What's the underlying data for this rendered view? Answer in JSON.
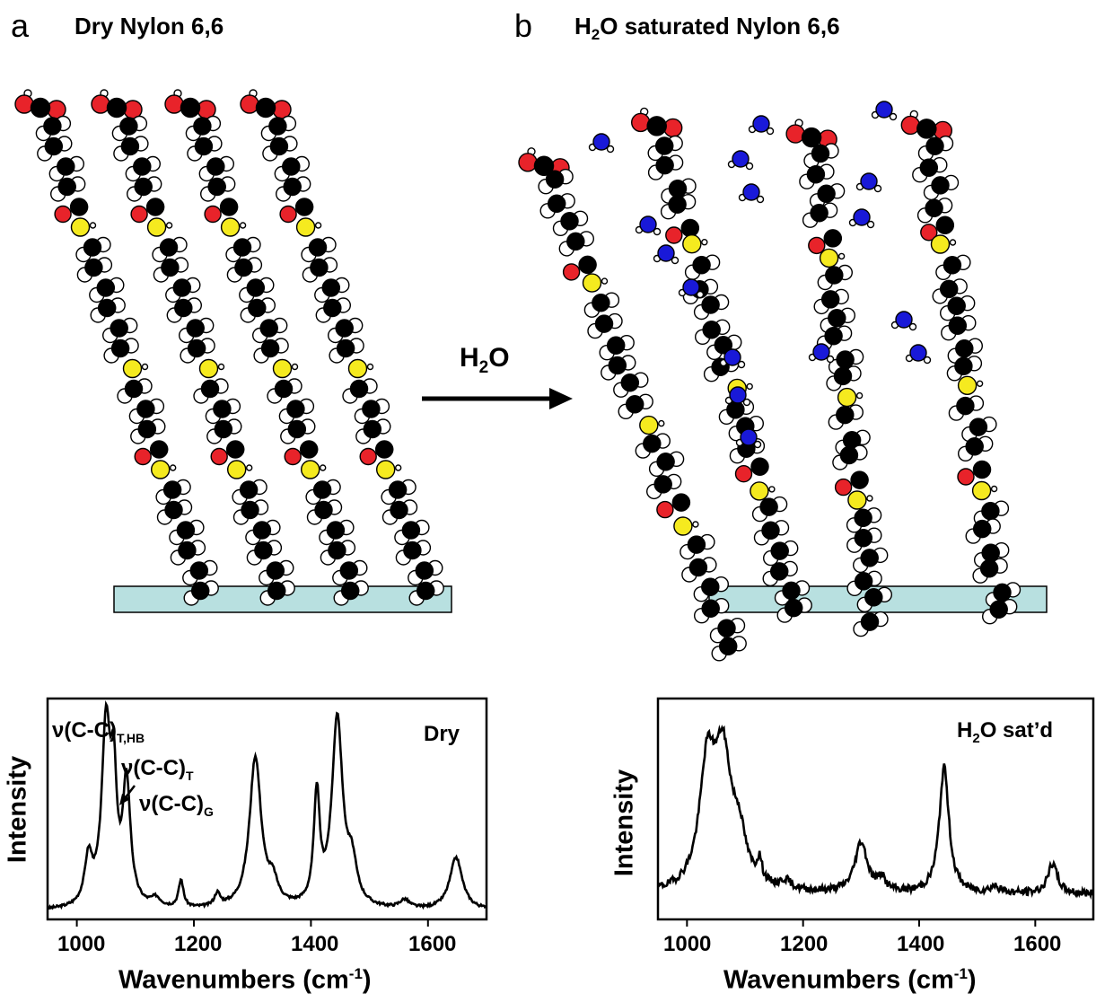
{
  "panel_a": {
    "letter": "a",
    "title": "Dry Nylon 6,6",
    "spectrum": {
      "corner_label": "Dry",
      "ylabel": "Intensity",
      "xlabel_main": "Wavenumbers (cm",
      "xlabel_sup": "-1",
      "xlabel_close": ")",
      "ticks": [
        "1000",
        "1200",
        "1400",
        "1600"
      ],
      "annotations": {
        "hb_main": "ν(C-C)",
        "hb_sub": "T,HB",
        "t_main": "ν(C-C)",
        "t_sub": "T",
        "g_main": "ν(C-C)",
        "g_sub": "G"
      }
    }
  },
  "panel_b": {
    "letter": "b",
    "title_main": "H",
    "title_sub": "2",
    "title_rest": "O saturated Nylon 6,6",
    "spectrum": {
      "corner_main": "H",
      "corner_sub": "2",
      "corner_rest": "O sat’d",
      "ylabel": "Intensity",
      "xlabel_main": "Wavenumbers (cm",
      "xlabel_sup": "-1",
      "xlabel_close": ")",
      "ticks": [
        "1000",
        "1200",
        "1400",
        "1600"
      ]
    }
  },
  "arrow": {
    "main": "H",
    "sub": "2",
    "rest": "O"
  },
  "colors": {
    "carbon": "#000000",
    "hydrogen": "#ffffff",
    "oxygen": "#e8232a",
    "nitrogen": "#f5ea1f",
    "water_oxygen": "#1919d8",
    "substrate": "#b8e0e0"
  },
  "chart_data": [
    {
      "type": "line",
      "name": "Dry",
      "x_range": [
        950,
        1700
      ],
      "peaks": [
        {
          "x": 1020,
          "h": 0.22,
          "w": 8
        },
        {
          "x": 1050,
          "h": 0.85,
          "w": 9
        },
        {
          "x": 1063,
          "h": 0.5,
          "w": 6
        },
        {
          "x": 1085,
          "h": 0.58,
          "w": 8
        },
        {
          "x": 1135,
          "h": 0.04,
          "w": 10
        },
        {
          "x": 1178,
          "h": 0.13,
          "w": 5
        },
        {
          "x": 1240,
          "h": 0.06,
          "w": 6
        },
        {
          "x": 1305,
          "h": 0.72,
          "w": 12
        },
        {
          "x": 1335,
          "h": 0.1,
          "w": 10
        },
        {
          "x": 1410,
          "h": 0.52,
          "w": 6
        },
        {
          "x": 1445,
          "h": 0.9,
          "w": 11
        },
        {
          "x": 1470,
          "h": 0.18,
          "w": 10
        },
        {
          "x": 1560,
          "h": 0.04,
          "w": 10
        },
        {
          "x": 1648,
          "h": 0.25,
          "w": 13
        }
      ],
      "baseline": 0.04
    },
    {
      "type": "line",
      "name": "H2O sat'd",
      "x_range": [
        950,
        1700
      ],
      "peaks": [
        {
          "x": 1035,
          "h": 0.55,
          "w": 16
        },
        {
          "x": 1062,
          "h": 0.6,
          "w": 18
        },
        {
          "x": 1090,
          "h": 0.2,
          "w": 14
        },
        {
          "x": 1125,
          "h": 0.1,
          "w": 5
        },
        {
          "x": 1170,
          "h": 0.04,
          "w": 12
        },
        {
          "x": 1300,
          "h": 0.24,
          "w": 13
        },
        {
          "x": 1335,
          "h": 0.06,
          "w": 8
        },
        {
          "x": 1443,
          "h": 0.6,
          "w": 10
        },
        {
          "x": 1530,
          "h": 0.03,
          "w": 10
        },
        {
          "x": 1630,
          "h": 0.14,
          "w": 10
        }
      ],
      "baseline": 0.12
    }
  ]
}
